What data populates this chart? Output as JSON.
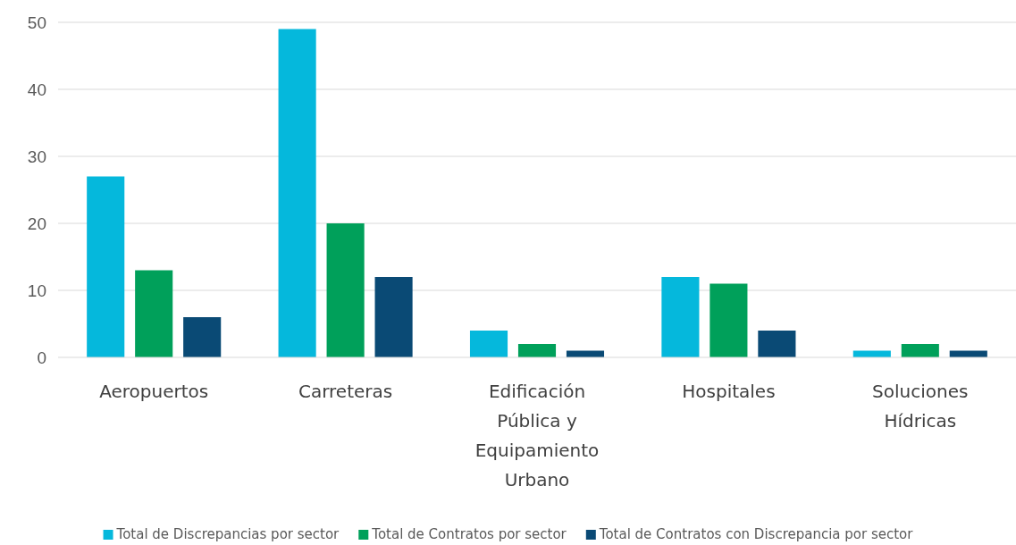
{
  "chart_data": {
    "type": "bar",
    "categories": [
      "Aeropuertos",
      "Carreteras",
      "Edificación Pública y Equipamiento Urbano",
      "Hospitales",
      "Soluciones Hídricas"
    ],
    "series": [
      {
        "name": "Total de Discrepancias por sector",
        "color": "#05b8dc",
        "values": [
          27,
          49,
          4,
          12,
          1
        ]
      },
      {
        "name": "Total de Contratos por sector",
        "color": "#00a05a",
        "values": [
          13,
          20,
          2,
          11,
          2
        ]
      },
      {
        "name": "Total de Contratos con Discrepancia por sector",
        "color": "#0a4a75",
        "values": [
          6,
          12,
          1,
          4,
          1
        ]
      }
    ],
    "ylim": [
      0,
      50
    ],
    "yticks": [
      0,
      10,
      20,
      30,
      40,
      50
    ],
    "grid": "y",
    "legend": "bottom"
  }
}
